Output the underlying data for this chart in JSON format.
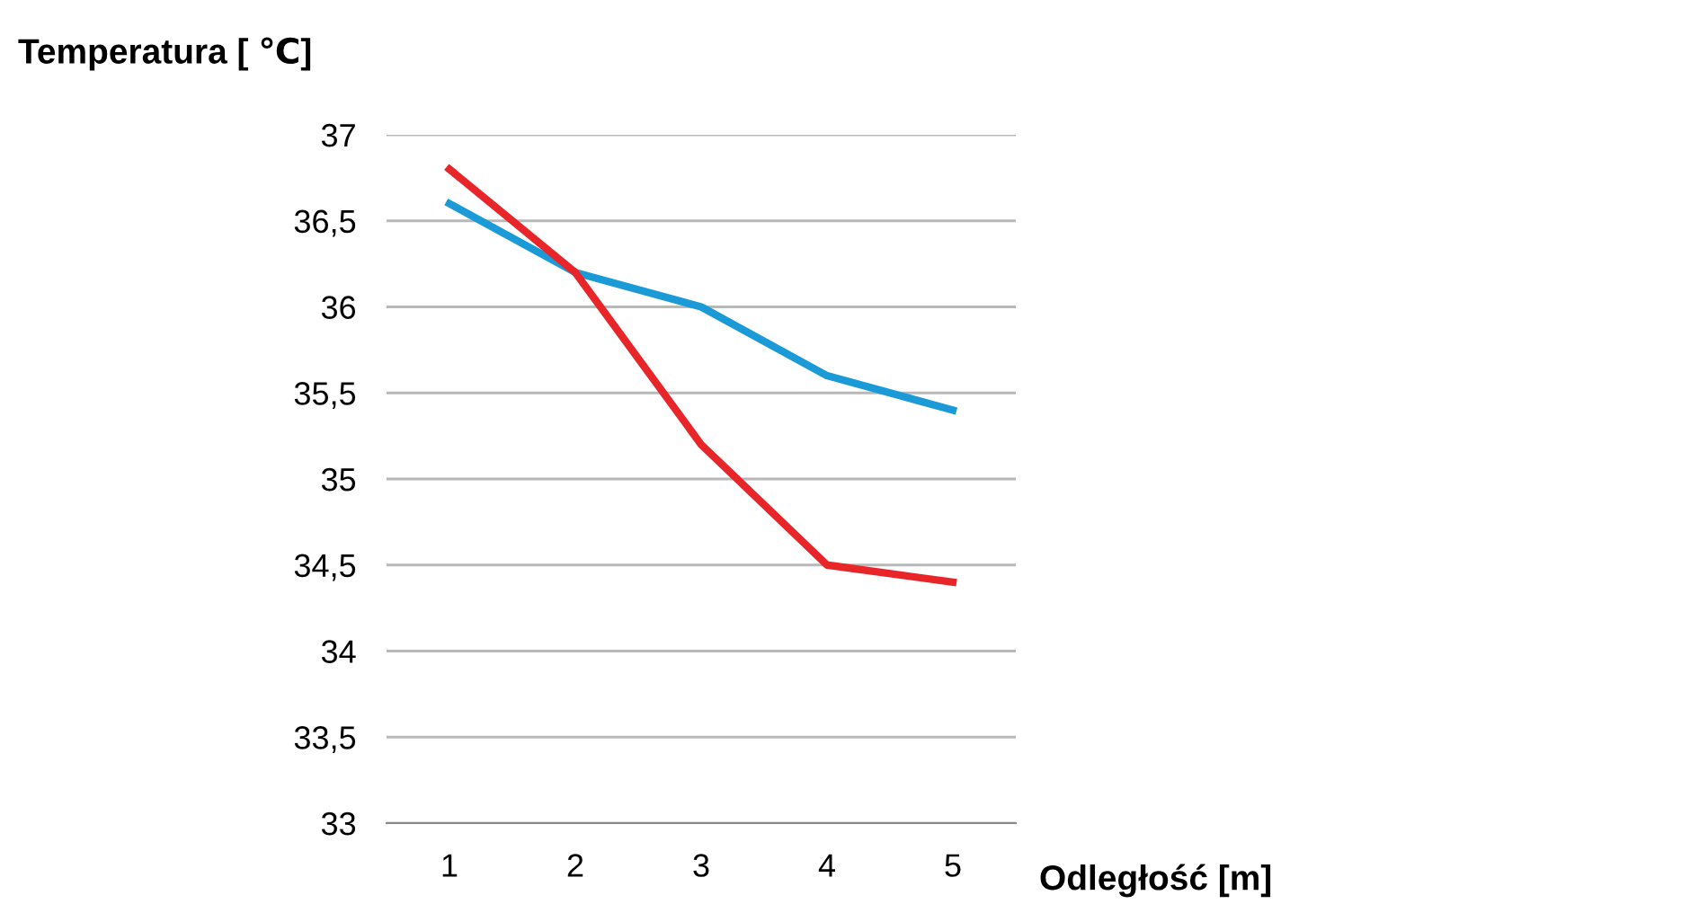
{
  "chart_data": {
    "type": "line",
    "ylabel": "Temperatura [ ℃]",
    "xlabel": "Odległość [m]",
    "categories": [
      "1",
      "2",
      "3",
      "4",
      "5"
    ],
    "series": [
      {
        "color": "#1a9ad6",
        "values": [
          36.6,
          36.2,
          36.0,
          35.6,
          35.4
        ]
      },
      {
        "color": "#e8262a",
        "values": [
          36.8,
          36.2,
          35.2,
          34.5,
          34.4
        ]
      }
    ],
    "ylim": [
      33,
      37
    ],
    "yticks": [
      33,
      {
        "value": 33.5,
        "label": "33,5"
      },
      34,
      {
        "value": 34.5,
        "label": "34,5"
      },
      35,
      {
        "value": 35.5,
        "label": "35,5"
      },
      36,
      {
        "value": 36.5,
        "label": "36,5"
      },
      37
    ],
    "grid": "y",
    "marker": "none",
    "line_style": "solid"
  }
}
